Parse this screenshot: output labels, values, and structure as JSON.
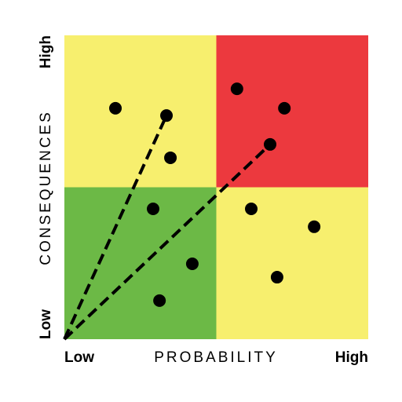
{
  "chart_data": {
    "type": "scatter",
    "x_label": "PROBABILITY",
    "y_label": "CONSEQUENCES",
    "xlim": [
      0,
      100
    ],
    "ylim": [
      0,
      100
    ],
    "xticks": [
      {
        "value": 0,
        "label": "Low"
      },
      {
        "value": 100,
        "label": "High"
      }
    ],
    "yticks": [
      {
        "value": 0,
        "label": "Low"
      },
      {
        "value": 100,
        "label": "High"
      }
    ],
    "quadrant_colors": {
      "low_low": "#6cb946",
      "low_high": "#f7ef6e",
      "high_low": "#f7ef6e",
      "high_high": "#ec393e"
    },
    "color": "#000000",
    "x": [
      16.8,
      33.6,
      34.9,
      29.2,
      42.1,
      31.3,
      56.8,
      72.4,
      67.7,
      61.5,
      82.2,
      70.0
    ],
    "y": [
      76.0,
      73.6,
      59.7,
      42.9,
      24.8,
      12.7,
      82.4,
      76.0,
      64.1,
      42.9,
      37.0,
      20.4
    ],
    "lines": [
      {
        "x": [
          0,
          33.6
        ],
        "y": [
          0,
          73.6
        ]
      },
      {
        "x": [
          0,
          67.7
        ],
        "y": [
          0,
          64.1
        ]
      }
    ]
  }
}
